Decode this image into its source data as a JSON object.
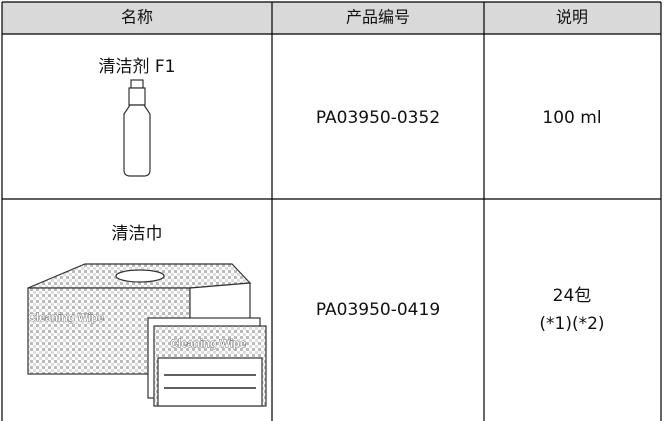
{
  "table": {
    "header": [
      "名称",
      "产品编号",
      "说明"
    ],
    "rows": [
      {
        "name": "清洁剂 F1",
        "code": "PA03950-0352",
        "description": [
          "100 ml"
        ]
      },
      {
        "name": "清洁巾",
        "image_label": "Cleaning Wipe",
        "code": "PA03950-0419",
        "description": [
          "24包",
          "(*1)(*2)"
        ]
      }
    ]
  }
}
